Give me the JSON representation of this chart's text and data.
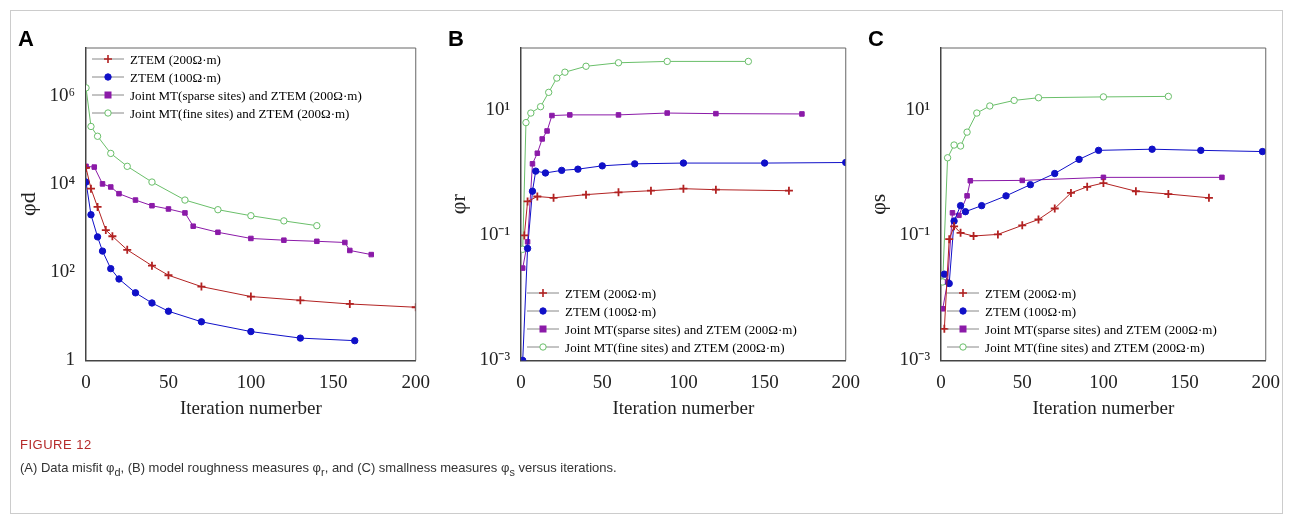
{
  "chart_data": [
    {
      "type": "line",
      "title": "A",
      "xlabel": "Iteration numerber",
      "ylabel": "φd",
      "log": "y",
      "legend": "top left",
      "xlim": [
        0,
        200
      ],
      "xticks": [
        0,
        50,
        100,
        150,
        200
      ],
      "ylim": [
        1,
        12000000
      ],
      "yticks": [
        1,
        {
          "value": 100,
          "label": "10²"
        },
        {
          "value": 10000,
          "label": "10⁴"
        },
        {
          "value": 1000000,
          "label": "10⁶"
        }
      ],
      "annotations": [
        "FIGURE 12",
        "(A) Data misfit φ$_{d}$, (B) model roughness measures φ$_{r}$, and (C) smallness measures φ$_{s}$ versus iterations."
      ],
      "series": [
        {
          "name": "ZTEM  (200Ω·m)",
          "color": "#b22222",
          "marker": "cross",
          "x": [
            0,
            3,
            7,
            12,
            16,
            25,
            40,
            50,
            70,
            100,
            130,
            160,
            200
          ],
          "values": [
            23000,
            7800,
            3000,
            900,
            650,
            320,
            140,
            85,
            47,
            28,
            23,
            19,
            16
          ]
        },
        {
          "name": "ZTEM  (100Ω·m)",
          "color": "#1010c8",
          "marker": "circle",
          "x": [
            0,
            3,
            7,
            10,
            15,
            20,
            30,
            40,
            50,
            70,
            100,
            130,
            163
          ],
          "values": [
            11000,
            2000,
            630,
            300,
            120,
            70,
            34,
            20,
            13,
            7.5,
            4.5,
            3.2,
            2.8
          ]
        },
        {
          "name": "Joint MT(sparse sites) and ZTEM  (200Ω·m)",
          "color": "#8b1aa8",
          "marker": "square",
          "x": [
            0,
            5,
            10,
            15,
            20,
            30,
            40,
            50,
            60,
            65,
            80,
            100,
            120,
            140,
            157,
            160,
            173
          ],
          "values": [
            25000,
            24000,
            10000,
            8500,
            6000,
            4300,
            3200,
            2700,
            2200,
            1100,
            800,
            580,
            530,
            500,
            470,
            310,
            250
          ]
        },
        {
          "name": "Joint MT(fine sites) and ZTEM  (200Ω·m)",
          "color": "#6abf6a",
          "marker": "circle",
          "x": [
            0,
            3,
            7,
            15,
            25,
            40,
            60,
            80,
            100,
            120,
            140
          ],
          "values": [
            1500000,
            200000,
            120000,
            49000,
            25000,
            11000,
            4300,
            2600,
            1900,
            1450,
            1130
          ]
        }
      ]
    },
    {
      "type": "line",
      "title": "B",
      "xlabel": "Iteration numerber",
      "ylabel": "φr",
      "log": "y",
      "legend": "bottom left",
      "xlim": [
        0,
        200
      ],
      "xticks": [
        0,
        50,
        100,
        150,
        200
      ],
      "ylim": [
        0.001,
        100
      ],
      "yticks": [
        {
          "value": 0.001,
          "label": "10⁻³"
        },
        {
          "value": 0.1,
          "label": "10⁻¹"
        },
        {
          "value": 10,
          "label": "10¹"
        }
      ],
      "series": [
        {
          "name": "ZTEM  (200Ω·m)",
          "color": "#b22222",
          "marker": "cross",
          "x": [
            2,
            4,
            10,
            20,
            40,
            60,
            80,
            100,
            120,
            165
          ],
          "values": [
            0.1,
            0.35,
            0.42,
            0.4,
            0.45,
            0.49,
            0.52,
            0.56,
            0.54,
            0.52
          ]
        },
        {
          "name": "ZTEM  (100Ω·m)",
          "color": "#1010c8",
          "marker": "circle",
          "x": [
            1,
            4,
            7,
            9,
            15,
            25,
            35,
            50,
            70,
            100,
            150,
            200
          ],
          "values": [
            0.001,
            0.062,
            0.51,
            1.07,
            1,
            1.1,
            1.15,
            1.3,
            1.4,
            1.44,
            1.44,
            1.47
          ]
        },
        {
          "name": "Joint MT(sparse sites) and ZTEM  (200Ω·m)",
          "color": "#8b1aa8",
          "marker": "square",
          "x": [
            1,
            4,
            7,
            10,
            13,
            16,
            19,
            30,
            60,
            90,
            120,
            173
          ],
          "values": [
            0.03,
            0.079,
            1.4,
            2.07,
            3.5,
            4.7,
            8.3,
            8.5,
            8.5,
            9.1,
            8.9,
            8.8
          ]
        },
        {
          "name": "Joint MT(fine sites) and ZTEM  (200Ω·m)",
          "color": "#6abf6a",
          "marker": "circle",
          "x": [
            1,
            3,
            6,
            12,
            17,
            22,
            27,
            40,
            60,
            90,
            140
          ],
          "values": [
            0.06,
            6.4,
            9.1,
            11.5,
            19.5,
            33,
            41,
            51,
            58,
            61,
            61
          ]
        }
      ]
    },
    {
      "type": "line",
      "title": "C",
      "xlabel": "Iteration numerber",
      "ylabel": "φs",
      "log": "y",
      "legend": "bottom left",
      "xlim": [
        0,
        200
      ],
      "xticks": [
        0,
        50,
        100,
        150,
        200
      ],
      "ylim": [
        0.001,
        100
      ],
      "yticks": [
        {
          "value": 0.001,
          "label": "10⁻³"
        },
        {
          "value": 0.1,
          "label": "10⁻¹"
        },
        {
          "value": 10,
          "label": "10¹"
        }
      ],
      "series": [
        {
          "name": "ZTEM  (200Ω·m)",
          "color": "#b22222",
          "marker": "cross",
          "x": [
            2,
            5,
            8,
            12,
            20,
            35,
            50,
            60,
            70,
            80,
            90,
            100,
            120,
            140,
            165
          ],
          "values": [
            0.0032,
            0.087,
            0.14,
            0.11,
            0.098,
            0.104,
            0.145,
            0.18,
            0.27,
            0.48,
            0.6,
            0.69,
            0.51,
            0.46,
            0.4
          ]
        },
        {
          "name": "ZTEM  (100Ω·m)",
          "color": "#1010c8",
          "marker": "circle",
          "x": [
            2,
            5,
            8,
            12,
            15,
            25,
            40,
            55,
            70,
            85,
            97,
            130,
            160,
            198
          ],
          "values": [
            0.024,
            0.017,
            0.17,
            0.3,
            0.24,
            0.3,
            0.43,
            0.65,
            0.98,
            1.65,
            2.3,
            2.4,
            2.3,
            2.2
          ]
        },
        {
          "name": "Joint MT(sparse sites) and ZTEM  (200Ω·m)",
          "color": "#8b1aa8",
          "marker": "square",
          "x": [
            1,
            4,
            7,
            11,
            16,
            18,
            50,
            100,
            173
          ],
          "values": [
            0.0067,
            0.018,
            0.23,
            0.21,
            0.43,
            0.75,
            0.76,
            0.85,
            0.85
          ]
        },
        {
          "name": "Joint MT(fine sites) and ZTEM  (200Ω·m)",
          "color": "#6abf6a",
          "marker": "circle",
          "x": [
            1,
            4,
            8,
            12,
            16,
            22,
            30,
            45,
            60,
            100,
            140
          ],
          "values": [
            0.018,
            1.75,
            2.8,
            2.7,
            4.5,
            9.1,
            11.8,
            14.5,
            16,
            16.5,
            16.8
          ]
        }
      ]
    }
  ]
}
